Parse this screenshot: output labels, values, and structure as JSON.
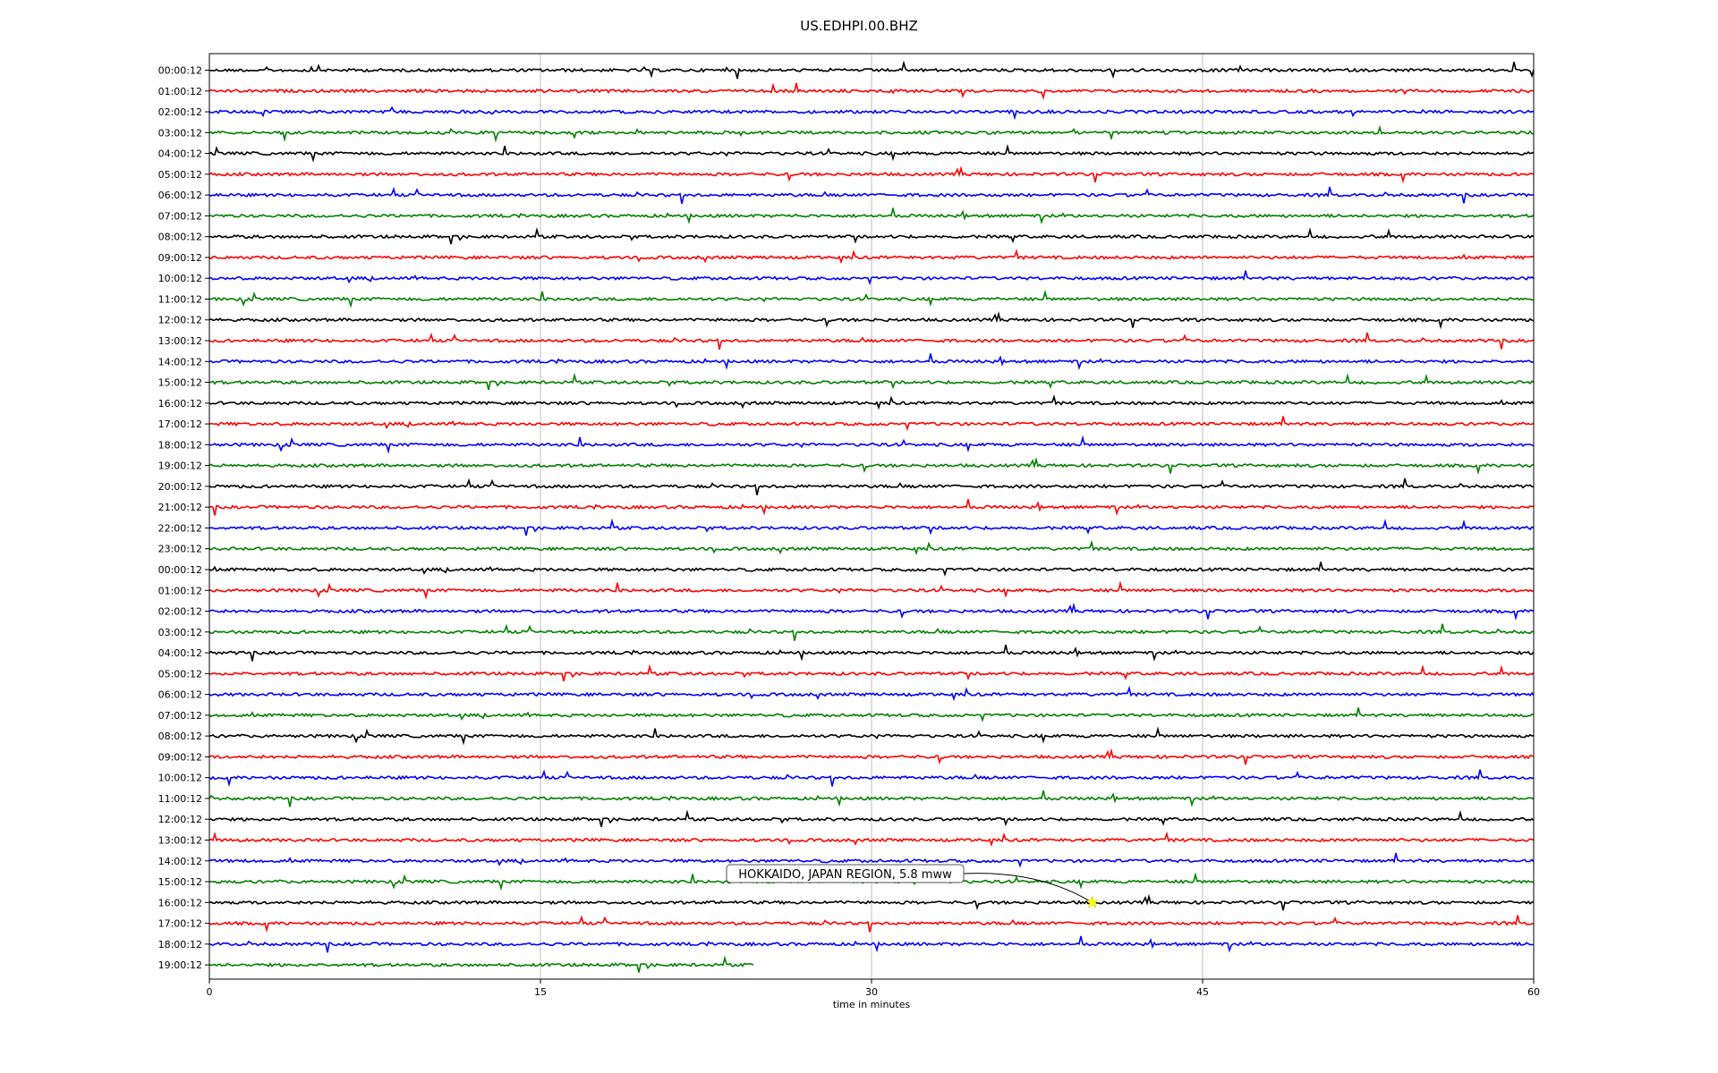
{
  "chart_data": {
    "type": "line",
    "title": "US.EDHPI.00.BHZ",
    "xlabel": "time in minutes",
    "ylabel": "",
    "xlim": [
      0,
      60
    ],
    "xticks": [
      0,
      15,
      30,
      45,
      60
    ],
    "grid": "vertical",
    "trace_colors": [
      "#000000",
      "#ff0000",
      "#0000ff",
      "#008000"
    ],
    "rows": [
      "00:00:12",
      "01:00:12",
      "02:00:12",
      "03:00:12",
      "04:00:12",
      "05:00:12",
      "06:00:12",
      "07:00:12",
      "08:00:12",
      "09:00:12",
      "10:00:12",
      "11:00:12",
      "12:00:12",
      "13:00:12",
      "14:00:12",
      "15:00:12",
      "16:00:12",
      "17:00:12",
      "18:00:12",
      "19:00:12",
      "20:00:12",
      "21:00:12",
      "22:00:12",
      "23:00:12",
      "00:00:12",
      "01:00:12",
      "02:00:12",
      "03:00:12",
      "04:00:12",
      "05:00:12",
      "06:00:12",
      "07:00:12",
      "08:00:12",
      "09:00:12",
      "10:00:12",
      "11:00:12",
      "12:00:12",
      "13:00:12",
      "14:00:12",
      "15:00:12",
      "16:00:12",
      "17:00:12",
      "18:00:12",
      "19:00:12"
    ],
    "last_row_end_minute": 24.7,
    "annotations": [
      {
        "text": "HOKKAIDO, JAPAN REGION, 5.8 mww",
        "row": 40,
        "minute": 40.0,
        "marker": "star",
        "marker_color": "#ffff00"
      }
    ]
  }
}
